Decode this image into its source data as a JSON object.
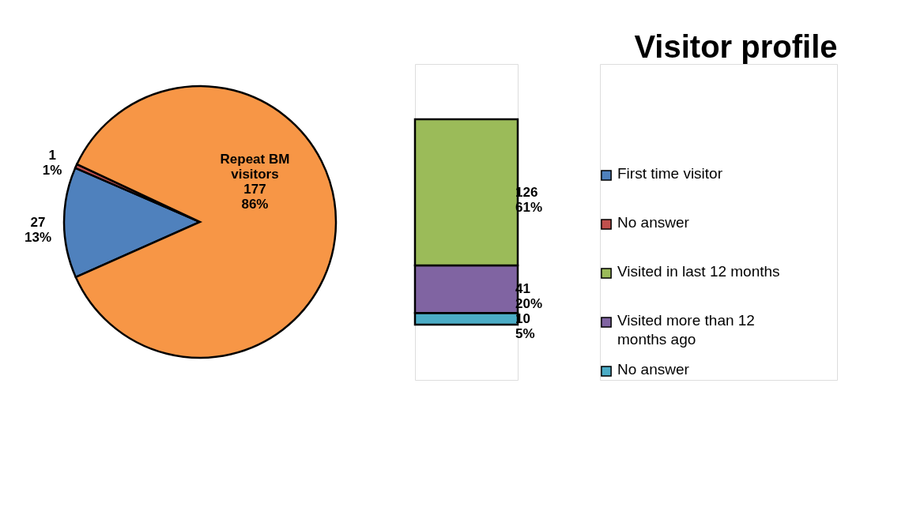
{
  "chart_data": [
    {
      "type": "pie",
      "title": "Visitor profile",
      "legend": "right",
      "categories": [
        "First time visitor",
        "No answer",
        null
      ],
      "values": [
        27,
        1,
        177
      ],
      "colors": [
        "#4f81bd",
        "#c0504d",
        "#f79646"
      ],
      "value_labels": [
        "27\n13%",
        "1\n1%",
        "Repeat BM\nvisitors\n177\n86%"
      ]
    },
    {
      "type": "bar",
      "stacked": true,
      "legend": "right",
      "categories": [
        null
      ],
      "series": [
        {
          "name": "No answer",
          "color": "#4bacc6",
          "values": [
            10
          ],
          "value_labels": [
            "10\n5%"
          ]
        },
        {
          "name": "Visited more than 12 months ago",
          "color": "#8064a2",
          "values": [
            41
          ],
          "value_labels": [
            "41\n20%"
          ]
        },
        {
          "name": "Visited in last 12 months",
          "color": "#9bbb59",
          "values": [
            126
          ],
          "value_labels": [
            "126\n61%"
          ]
        }
      ]
    }
  ]
}
